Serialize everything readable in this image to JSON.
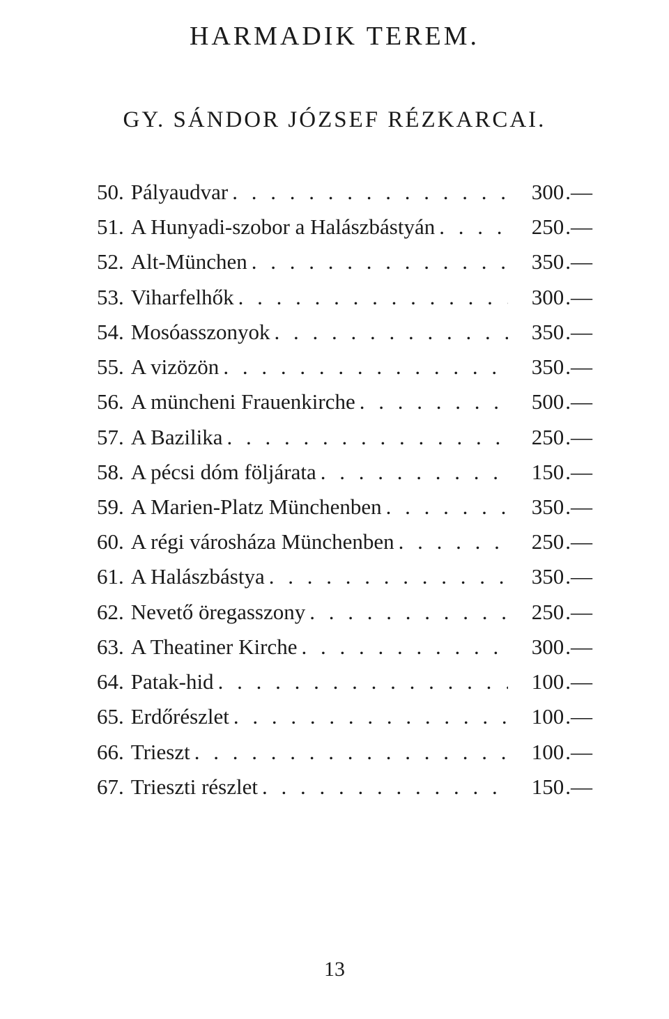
{
  "colors": {
    "text": "#1a1a1a",
    "background": "#ffffff"
  },
  "typography": {
    "font_family": "Times New Roman",
    "title_fontsize_pt": 28,
    "subtitle_fontsize_pt": 25,
    "body_fontsize_pt": 23
  },
  "title": "HARMADIK TEREM.",
  "subtitle": "GY. SÁNDOR JÓZSEF RÉZKARCAI.",
  "leader_char": ".",
  "price_suffix": ".—",
  "items": [
    {
      "num": "50",
      "label": "Pályaudvar",
      "price": "300"
    },
    {
      "num": "51",
      "label": "A Hunyadi-szobor a Halászbástyán",
      "price": "250"
    },
    {
      "num": "52",
      "label": "Alt-München",
      "price": "350"
    },
    {
      "num": "53",
      "label": "Viharfelhők",
      "price": "300"
    },
    {
      "num": "54",
      "label": "Mosóasszonyok",
      "price": "350"
    },
    {
      "num": "55",
      "label": "A vizözön",
      "price": "350"
    },
    {
      "num": "56",
      "label": "A müncheni Frauenkirche",
      "price": "500"
    },
    {
      "num": "57",
      "label": "A Bazilika",
      "price": "250"
    },
    {
      "num": "58",
      "label": "A pécsi dóm följárata",
      "price": "150"
    },
    {
      "num": "59",
      "label": "A Marien-Platz Münchenben",
      "price": "350"
    },
    {
      "num": "60",
      "label": "A régi városháza Münchenben",
      "price": "250"
    },
    {
      "num": "61",
      "label": "A Halászbástya",
      "price": "350"
    },
    {
      "num": "62",
      "label": "Nevető öregasszony",
      "price": "250"
    },
    {
      "num": "63",
      "label": "A Theatiner Kirche",
      "price": "300"
    },
    {
      "num": "64",
      "label": "Patak-hid",
      "price": "100"
    },
    {
      "num": "65",
      "label": "Erdőrészlet",
      "price": "100"
    },
    {
      "num": "66",
      "label": "Trieszt",
      "price": "100"
    },
    {
      "num": "67",
      "label": "Trieszti részlet",
      "price": "150"
    }
  ],
  "page_number": "13"
}
